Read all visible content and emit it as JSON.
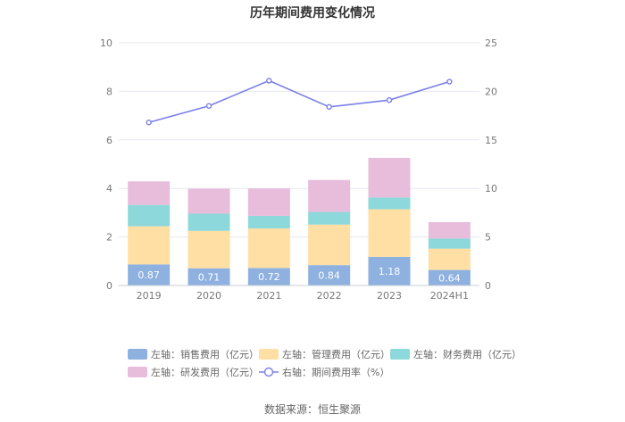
{
  "chart_data": {
    "type": "bar",
    "title": "历年期间费用变化情况",
    "categories": [
      "2019",
      "2020",
      "2021",
      "2022",
      "2023",
      "2024H1"
    ],
    "left_axis": {
      "min": 0,
      "max": 10,
      "ticks": [
        "0",
        "2",
        "4",
        "6",
        "8",
        "10"
      ]
    },
    "right_axis": {
      "min": 0,
      "max": 25,
      "ticks": [
        "0",
        "5",
        "10",
        "15",
        "20",
        "25"
      ]
    },
    "series": [
      {
        "name": "左轴：销售费用（亿元）",
        "type": "stacked-bar",
        "axis": "left",
        "color": "#8EB1E0",
        "values": [
          0.87,
          0.71,
          0.72,
          0.84,
          1.18,
          0.64
        ],
        "labels": [
          "0.87",
          "0.71",
          "0.72",
          "0.84",
          "1.18",
          "0.64"
        ]
      },
      {
        "name": "左轴：管理费用（亿元）",
        "type": "stacked-bar",
        "axis": "left",
        "color": "#FFDFA3",
        "values": [
          1.57,
          1.54,
          1.63,
          1.67,
          1.96,
          0.88
        ]
      },
      {
        "name": "左轴：财务费用（亿元）",
        "type": "stacked-bar",
        "axis": "left",
        "color": "#8DD8DA",
        "values": [
          0.88,
          0.71,
          0.52,
          0.52,
          0.49,
          0.42
        ]
      },
      {
        "name": "左轴：研发费用（亿元）",
        "type": "stacked-bar",
        "axis": "left",
        "color": "#E8BCDB",
        "values": [
          0.97,
          1.03,
          1.13,
          1.32,
          1.63,
          0.67
        ]
      },
      {
        "name": "右轴：期间费用率（%）",
        "type": "line",
        "axis": "right",
        "color": "#7B7FE8",
        "values": [
          16.8,
          18.5,
          21.1,
          18.4,
          19.1,
          21.0
        ]
      }
    ],
    "source": "数据来源：恒生聚源"
  }
}
